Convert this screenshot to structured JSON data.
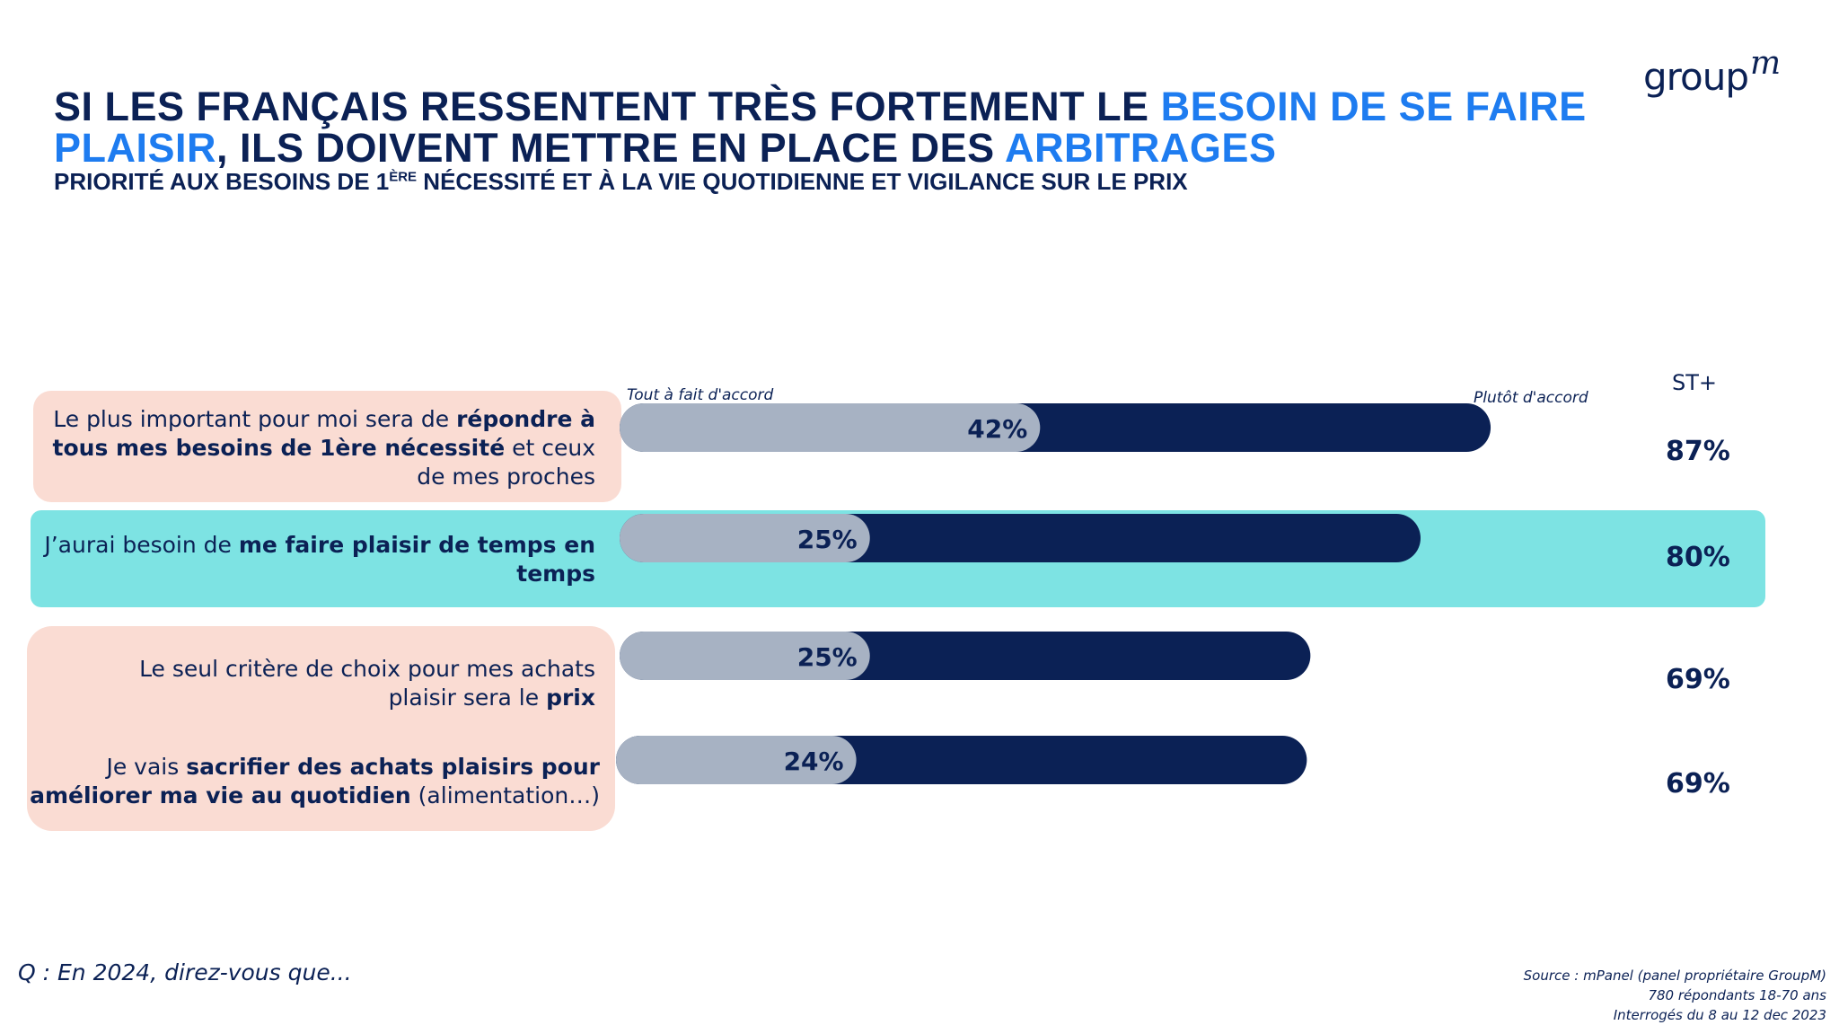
{
  "logo": {
    "text": "group",
    "sup": "m"
  },
  "title": {
    "part1": "SI LES FRANÇAIS RESSENTENT TRÈS FORTEMENT LE ",
    "hl1": "BESOIN DE SE FAIRE PLAISIR",
    "part2": ", ILS DOIVENT METTRE EN PLACE DES ",
    "hl2": "ARBITRAGES",
    "accent_color": "#1e7cf0",
    "main_color": "#0b2155"
  },
  "subtitle": {
    "pre": "PRIORITÉ AUX BESOINS DE 1",
    "sup": "ÈRE",
    "post": " NÉCESSITÉ ET À LA VIE QUOTIDIENNE ET VIGILANCE SUR LE PRIX"
  },
  "headers": {
    "tout": "Tout à fait d'accord",
    "plutot": "Plutôt d'accord",
    "st": "ST+"
  },
  "rows": [
    {
      "pre": "Le plus important pour moi sera de ",
      "bold": "répondre à tous mes besoins de 1ère nécessité",
      "post": " et ceux de mes proches"
    },
    {
      "pre": "J’aurai besoin de ",
      "bold": "me faire plaisir de temps en temps",
      "post": ""
    },
    {
      "pre": "Le seul critère de choix pour mes achats plaisir sera le ",
      "bold": "prix",
      "post": ""
    },
    {
      "pre": "Je vais ",
      "bold": "sacrifier des achats plaisirs pour améliorer ma vie au quotidien",
      "post": " (alimentation…)"
    }
  ],
  "chart_data": {
    "type": "bar",
    "orientation": "horizontal",
    "stacked": true,
    "categories": [
      "Le plus important pour moi sera de répondre à tous mes besoins de 1ère nécessité et ceux de mes proches",
      "J’aurai besoin de me faire plaisir de temps en temps",
      "Le seul critère de choix pour mes achats plaisir sera le prix",
      "Je vais sacrifier des achats plaisirs pour améliorer ma vie au quotidien (alimentation…)"
    ],
    "series": [
      {
        "name": "Tout à fait d'accord",
        "values": [
          42,
          25,
          25,
          24
        ],
        "color": "#a7b2c3"
      },
      {
        "name": "Plutôt d'accord",
        "values": [
          45,
          55,
          44,
          45
        ],
        "color": "#0b2155"
      }
    ],
    "totals_label": "ST+",
    "totals": [
      87,
      80,
      69,
      69
    ],
    "value_labels": [
      "42%",
      "25%",
      "25%",
      "24%"
    ],
    "total_labels": [
      "87%",
      "80%",
      "69%",
      "69%"
    ],
    "xlim": [
      0,
      100
    ]
  },
  "footer": {
    "question": "Q : En 2024, direz-vous que...",
    "source1": "Source : mPanel (panel propriétaire GroupM)",
    "source2": "780 répondants 18-70 ans",
    "source3": "Interrogés du 8 au 12 dec 2023"
  }
}
